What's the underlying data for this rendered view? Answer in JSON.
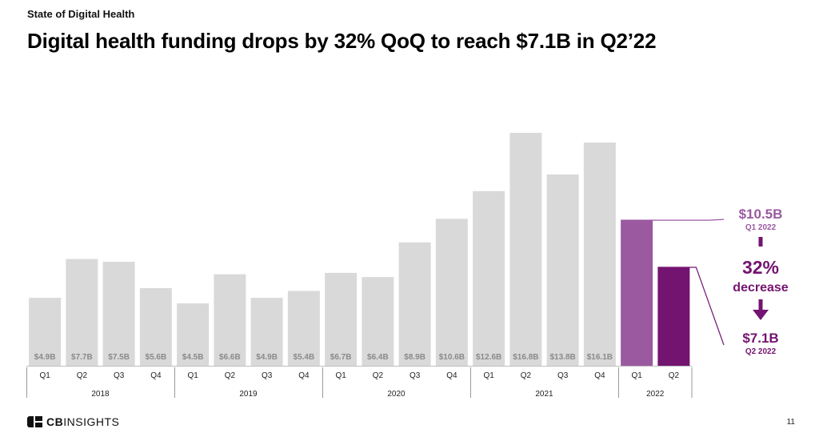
{
  "header": {
    "kicker": "State of Digital Health",
    "title": "Digital health funding drops by 32% QoQ to reach $7.1B in Q2’22"
  },
  "footer": {
    "logo_cb": "CB",
    "logo_insights": "INSIGHTS",
    "page_number": "11"
  },
  "colors": {
    "bar_default": "#d9d9d9",
    "bar_q1_2022": "#9b59a0",
    "bar_q2_2022": "#731470",
    "value_label": "#8a8a8a",
    "callout": "#731470",
    "callout_light": "#9b59a0"
  },
  "chart_data": {
    "type": "bar",
    "categories": [
      "Q1",
      "Q2",
      "Q3",
      "Q4",
      "Q1",
      "Q2",
      "Q3",
      "Q4",
      "Q1",
      "Q2",
      "Q3",
      "Q4",
      "Q1",
      "Q2",
      "Q3",
      "Q4",
      "Q1",
      "Q2"
    ],
    "years": [
      {
        "label": "2018",
        "quarters": 4
      },
      {
        "label": "2019",
        "quarters": 4
      },
      {
        "label": "2020",
        "quarters": 4
      },
      {
        "label": "2021",
        "quarters": 4
      },
      {
        "label": "2022",
        "quarters": 2
      }
    ],
    "values": [
      4.9,
      7.7,
      7.5,
      5.6,
      4.5,
      6.6,
      4.9,
      5.4,
      6.7,
      6.4,
      8.9,
      10.6,
      12.6,
      16.8,
      13.8,
      16.1,
      10.5,
      7.1
    ],
    "value_labels": [
      "$4.9B",
      "$7.7B",
      "$7.5B",
      "$5.6B",
      "$4.5B",
      "$6.6B",
      "$4.9B",
      "$5.4B",
      "$6.7B",
      "$6.4B",
      "$8.9B",
      "$10.6B",
      "$12.6B",
      "$16.8B",
      "$13.8B",
      "$16.1B",
      "",
      ""
    ],
    "ylim": [
      0,
      17.5
    ],
    "title": "",
    "xlabel": "",
    "ylabel": "",
    "callout": {
      "top_value": "$10.5B",
      "top_period": "Q1 2022",
      "change_pct": "32%",
      "change_word": "decrease",
      "bottom_value": "$7.1B",
      "bottom_period": "Q2 2022"
    }
  }
}
